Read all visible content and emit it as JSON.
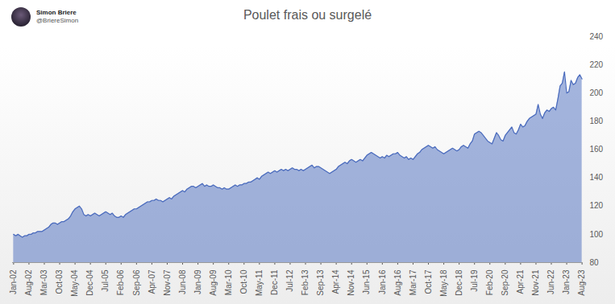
{
  "header": {
    "name": "Simon Briere",
    "handle": "@BriereSimon"
  },
  "chart_data": {
    "type": "area",
    "title": "Poulet frais ou surgelé",
    "color": "#4a6bbd",
    "grid": false,
    "ylim": [
      80,
      240
    ],
    "yticks": [
      80,
      100,
      120,
      140,
      160,
      180,
      200,
      220,
      240
    ],
    "categories": [
      "Jan-02",
      null,
      null,
      null,
      null,
      null,
      null,
      "Aug-02",
      null,
      null,
      null,
      null,
      null,
      null,
      "Mar-03",
      null,
      null,
      null,
      null,
      null,
      null,
      "Oct-03",
      null,
      null,
      null,
      null,
      null,
      null,
      "May-04",
      null,
      null,
      null,
      null,
      null,
      null,
      "Dec-04",
      null,
      null,
      null,
      null,
      null,
      null,
      "Jul-05",
      null,
      null,
      null,
      null,
      null,
      null,
      "Feb-06",
      null,
      null,
      null,
      null,
      null,
      null,
      "Sep-06",
      null,
      null,
      null,
      null,
      null,
      null,
      "Apr-07",
      null,
      null,
      null,
      null,
      null,
      null,
      "Nov-07",
      null,
      null,
      null,
      null,
      null,
      null,
      "Jun-08",
      null,
      null,
      null,
      null,
      null,
      null,
      "Jan-09",
      null,
      null,
      null,
      null,
      null,
      null,
      "Aug-09",
      null,
      null,
      null,
      null,
      null,
      null,
      "Mar-10",
      null,
      null,
      null,
      null,
      null,
      null,
      "Oct-10",
      null,
      null,
      null,
      null,
      null,
      null,
      "May-11",
      null,
      null,
      null,
      null,
      null,
      null,
      "Dec-11",
      null,
      null,
      null,
      null,
      null,
      null,
      "Jul-12",
      null,
      null,
      null,
      null,
      null,
      null,
      "Feb-13",
      null,
      null,
      null,
      null,
      null,
      null,
      "Sep-13",
      null,
      null,
      null,
      null,
      null,
      null,
      "Apr-14",
      null,
      null,
      null,
      null,
      null,
      null,
      "Nov-14",
      null,
      null,
      null,
      null,
      null,
      null,
      "Jun-15",
      null,
      null,
      null,
      null,
      null,
      null,
      "Jan-16",
      null,
      null,
      null,
      null,
      null,
      null,
      "Aug-16",
      null,
      null,
      null,
      null,
      null,
      null,
      "Mar-17",
      null,
      null,
      null,
      null,
      null,
      null,
      "Oct-17",
      null,
      null,
      null,
      null,
      null,
      null,
      "May-18",
      null,
      null,
      null,
      null,
      null,
      null,
      "Dec-18",
      null,
      null,
      null,
      null,
      null,
      null,
      "Jul-19",
      null,
      null,
      null,
      null,
      null,
      null,
      "Feb-20",
      null,
      null,
      null,
      null,
      null,
      null,
      "Sep-20",
      null,
      null,
      null,
      null,
      null,
      null,
      "Apr-21",
      null,
      null,
      null,
      null,
      null,
      null,
      "Nov-21",
      null,
      null,
      null,
      null,
      null,
      null,
      "Jun-22",
      null,
      null,
      null,
      null,
      null,
      null,
      "Jan-23",
      null,
      null,
      null,
      null,
      null,
      null,
      "Aug-23"
    ],
    "values": [
      100,
      99,
      100,
      99,
      98,
      99,
      99,
      100,
      100,
      101,
      101,
      102,
      102,
      102,
      103,
      104,
      105,
      107,
      108,
      108,
      107,
      108,
      109,
      109,
      110,
      111,
      113,
      116,
      118,
      119,
      120,
      118,
      114,
      113,
      114,
      113,
      114,
      115,
      114,
      113,
      114,
      115,
      116,
      115,
      114,
      115,
      113,
      112,
      112,
      113,
      112,
      114,
      115,
      116,
      117,
      118,
      118,
      119,
      120,
      121,
      122,
      123,
      123,
      124,
      124,
      125,
      124,
      124,
      123,
      124,
      125,
      126,
      125,
      127,
      128,
      129,
      130,
      131,
      130,
      132,
      133,
      134,
      134,
      133,
      134,
      135,
      136,
      134,
      135,
      134,
      134,
      135,
      134,
      133,
      133,
      132,
      133,
      132,
      132,
      133,
      134,
      135,
      134,
      135,
      135,
      136,
      136,
      137,
      137,
      138,
      139,
      140,
      139,
      141,
      142,
      143,
      144,
      143,
      144,
      145,
      144,
      145,
      146,
      145,
      146,
      145,
      146,
      147,
      146,
      146,
      145,
      146,
      145,
      146,
      147,
      148,
      149,
      147,
      148,
      148,
      147,
      146,
      145,
      144,
      143,
      144,
      145,
      146,
      148,
      149,
      150,
      151,
      150,
      152,
      153,
      152,
      151,
      152,
      153,
      152,
      154,
      156,
      157,
      158,
      157,
      156,
      155,
      154,
      155,
      154,
      156,
      155,
      156,
      157,
      157,
      158,
      156,
      155,
      154,
      155,
      153,
      154,
      153,
      155,
      157,
      158,
      160,
      161,
      162,
      163,
      162,
      161,
      162,
      160,
      159,
      158,
      157,
      158,
      159,
      160,
      161,
      160,
      159,
      160,
      162,
      163,
      162,
      161,
      164,
      166,
      171,
      172,
      173,
      172,
      170,
      168,
      166,
      165,
      164,
      168,
      172,
      170,
      167,
      166,
      170,
      172,
      174,
      176,
      172,
      171,
      174,
      178,
      176,
      177,
      180,
      182,
      183,
      184,
      185,
      192,
      185,
      182,
      186,
      188,
      187,
      189,
      190,
      188,
      196,
      205,
      207,
      215,
      200,
      201,
      209,
      206,
      207,
      211,
      213,
      210
    ]
  }
}
